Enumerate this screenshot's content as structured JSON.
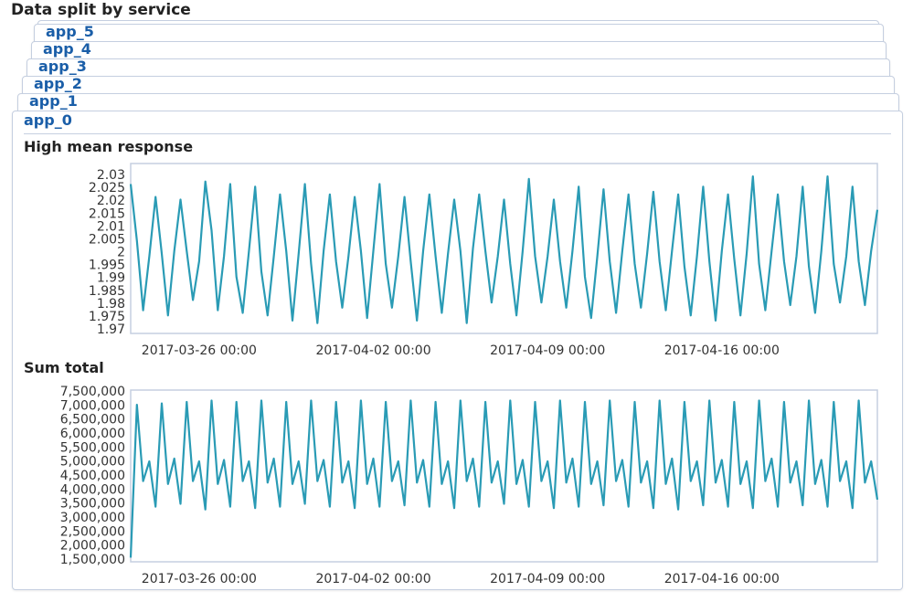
{
  "page_title": "Data split by service",
  "tabs": [
    {
      "label": ""
    },
    {
      "label": "app_5"
    },
    {
      "label": "app_4"
    },
    {
      "label": "app_3"
    },
    {
      "label": "app_2"
    },
    {
      "label": "app_1"
    },
    {
      "label": "app_0"
    }
  ],
  "colors": {
    "line": "#2a9bb5",
    "tab_label": "#1a5ea8",
    "border": "#c5cfe0"
  },
  "chart_data": [
    {
      "type": "line",
      "title": "High mean response",
      "ylim": [
        1.968,
        2.034
      ],
      "yticks": [
        "2.03",
        "2.025",
        "2.02",
        "2.015",
        "2.01",
        "2.005",
        "2",
        "1.995",
        "1.99",
        "1.985",
        "1.98",
        "1.975",
        "1.97"
      ],
      "xticks": [
        "2017-03-26 00:00",
        "2017-04-02 00:00",
        "2017-04-09 00:00",
        "2017-04-16 00:00"
      ],
      "x_start": "2017-03-23 06:00",
      "x_step_hours": 6,
      "values": [
        2.026,
        2.004,
        1.977,
        1.998,
        2.021,
        1.999,
        1.975,
        2.0,
        2.02,
        2.0,
        1.981,
        1.996,
        2.027,
        2.008,
        1.977,
        1.998,
        2.026,
        1.99,
        1.976,
        2.0,
        2.025,
        1.992,
        1.975,
        1.998,
        2.022,
        2.0,
        1.973,
        1.999,
        2.026,
        1.995,
        1.972,
        2.0,
        2.022,
        1.996,
        1.978,
        1.998,
        2.021,
        2.0,
        1.974,
        2.0,
        2.026,
        1.995,
        1.978,
        1.998,
        2.021,
        1.996,
        1.973,
        2.0,
        2.022,
        1.998,
        1.976,
        1.999,
        2.02,
        2.0,
        1.972,
        2.001,
        2.022,
        2.0,
        1.98,
        1.998,
        2.02,
        1.995,
        1.975,
        2.0,
        2.028,
        1.998,
        1.98,
        1.998,
        2.02,
        1.996,
        1.978,
        2.0,
        2.025,
        1.99,
        1.974,
        1.998,
        2.024,
        1.996,
        1.976,
        2.0,
        2.022,
        1.995,
        1.978,
        1.999,
        2.023,
        1.996,
        1.977,
        2.0,
        2.022,
        1.994,
        1.975,
        1.998,
        2.025,
        1.996,
        1.973,
        2.0,
        2.022,
        1.997,
        1.975,
        1.999,
        2.029,
        1.995,
        1.977,
        2.0,
        2.022,
        1.996,
        1.979,
        1.998,
        2.025,
        1.994,
        1.976,
        2.0,
        2.029,
        1.995,
        1.98,
        1.998,
        2.025,
        1.996,
        1.979,
        2.0,
        2.016
      ]
    },
    {
      "type": "line",
      "title": "Sum total",
      "ylim": [
        1450000,
        7520000
      ],
      "yticks": [
        "7,500,000",
        "7,000,000",
        "6,500,000",
        "6,000,000",
        "5,500,000",
        "5,000,000",
        "4,500,000",
        "4,000,000",
        "3,500,000",
        "3,000,000",
        "2,500,000",
        "2,000,000",
        "1,500,000"
      ],
      "xticks": [
        "2017-03-26 00:00",
        "2017-04-02 00:00",
        "2017-04-09 00:00",
        "2017-04-16 00:00"
      ],
      "x_start": "2017-03-23 06:00",
      "x_step_hours": 6,
      "values": [
        1600000,
        7000000,
        4300000,
        5000000,
        3400000,
        7050000,
        4200000,
        5100000,
        3500000,
        7100000,
        4300000,
        5000000,
        3300000,
        7150000,
        4200000,
        5050000,
        3400000,
        7100000,
        4300000,
        5000000,
        3350000,
        7150000,
        4250000,
        5100000,
        3400000,
        7100000,
        4200000,
        5000000,
        3500000,
        7150000,
        4300000,
        5050000,
        3400000,
        7100000,
        4250000,
        5000000,
        3350000,
        7150000,
        4200000,
        5100000,
        3400000,
        7100000,
        4300000,
        5000000,
        3450000,
        7150000,
        4250000,
        5050000,
        3400000,
        7100000,
        4200000,
        5000000,
        3350000,
        7150000,
        4300000,
        5100000,
        3400000,
        7100000,
        4250000,
        5000000,
        3500000,
        7150000,
        4200000,
        5050000,
        3400000,
        7100000,
        4300000,
        5000000,
        3350000,
        7150000,
        4250000,
        5100000,
        3400000,
        7100000,
        4200000,
        5000000,
        3450000,
        7150000,
        4300000,
        5050000,
        3400000,
        7100000,
        4250000,
        5000000,
        3350000,
        7150000,
        4200000,
        5100000,
        3300000,
        7100000,
        4300000,
        5000000,
        3450000,
        7150000,
        4250000,
        5050000,
        3400000,
        7100000,
        4200000,
        5000000,
        3350000,
        7150000,
        4300000,
        5100000,
        3400000,
        7100000,
        4250000,
        5000000,
        3450000,
        7150000,
        4200000,
        5050000,
        3400000,
        7100000,
        4300000,
        5000000,
        3350000,
        7150000,
        4250000,
        5000000,
        3650000
      ]
    }
  ]
}
